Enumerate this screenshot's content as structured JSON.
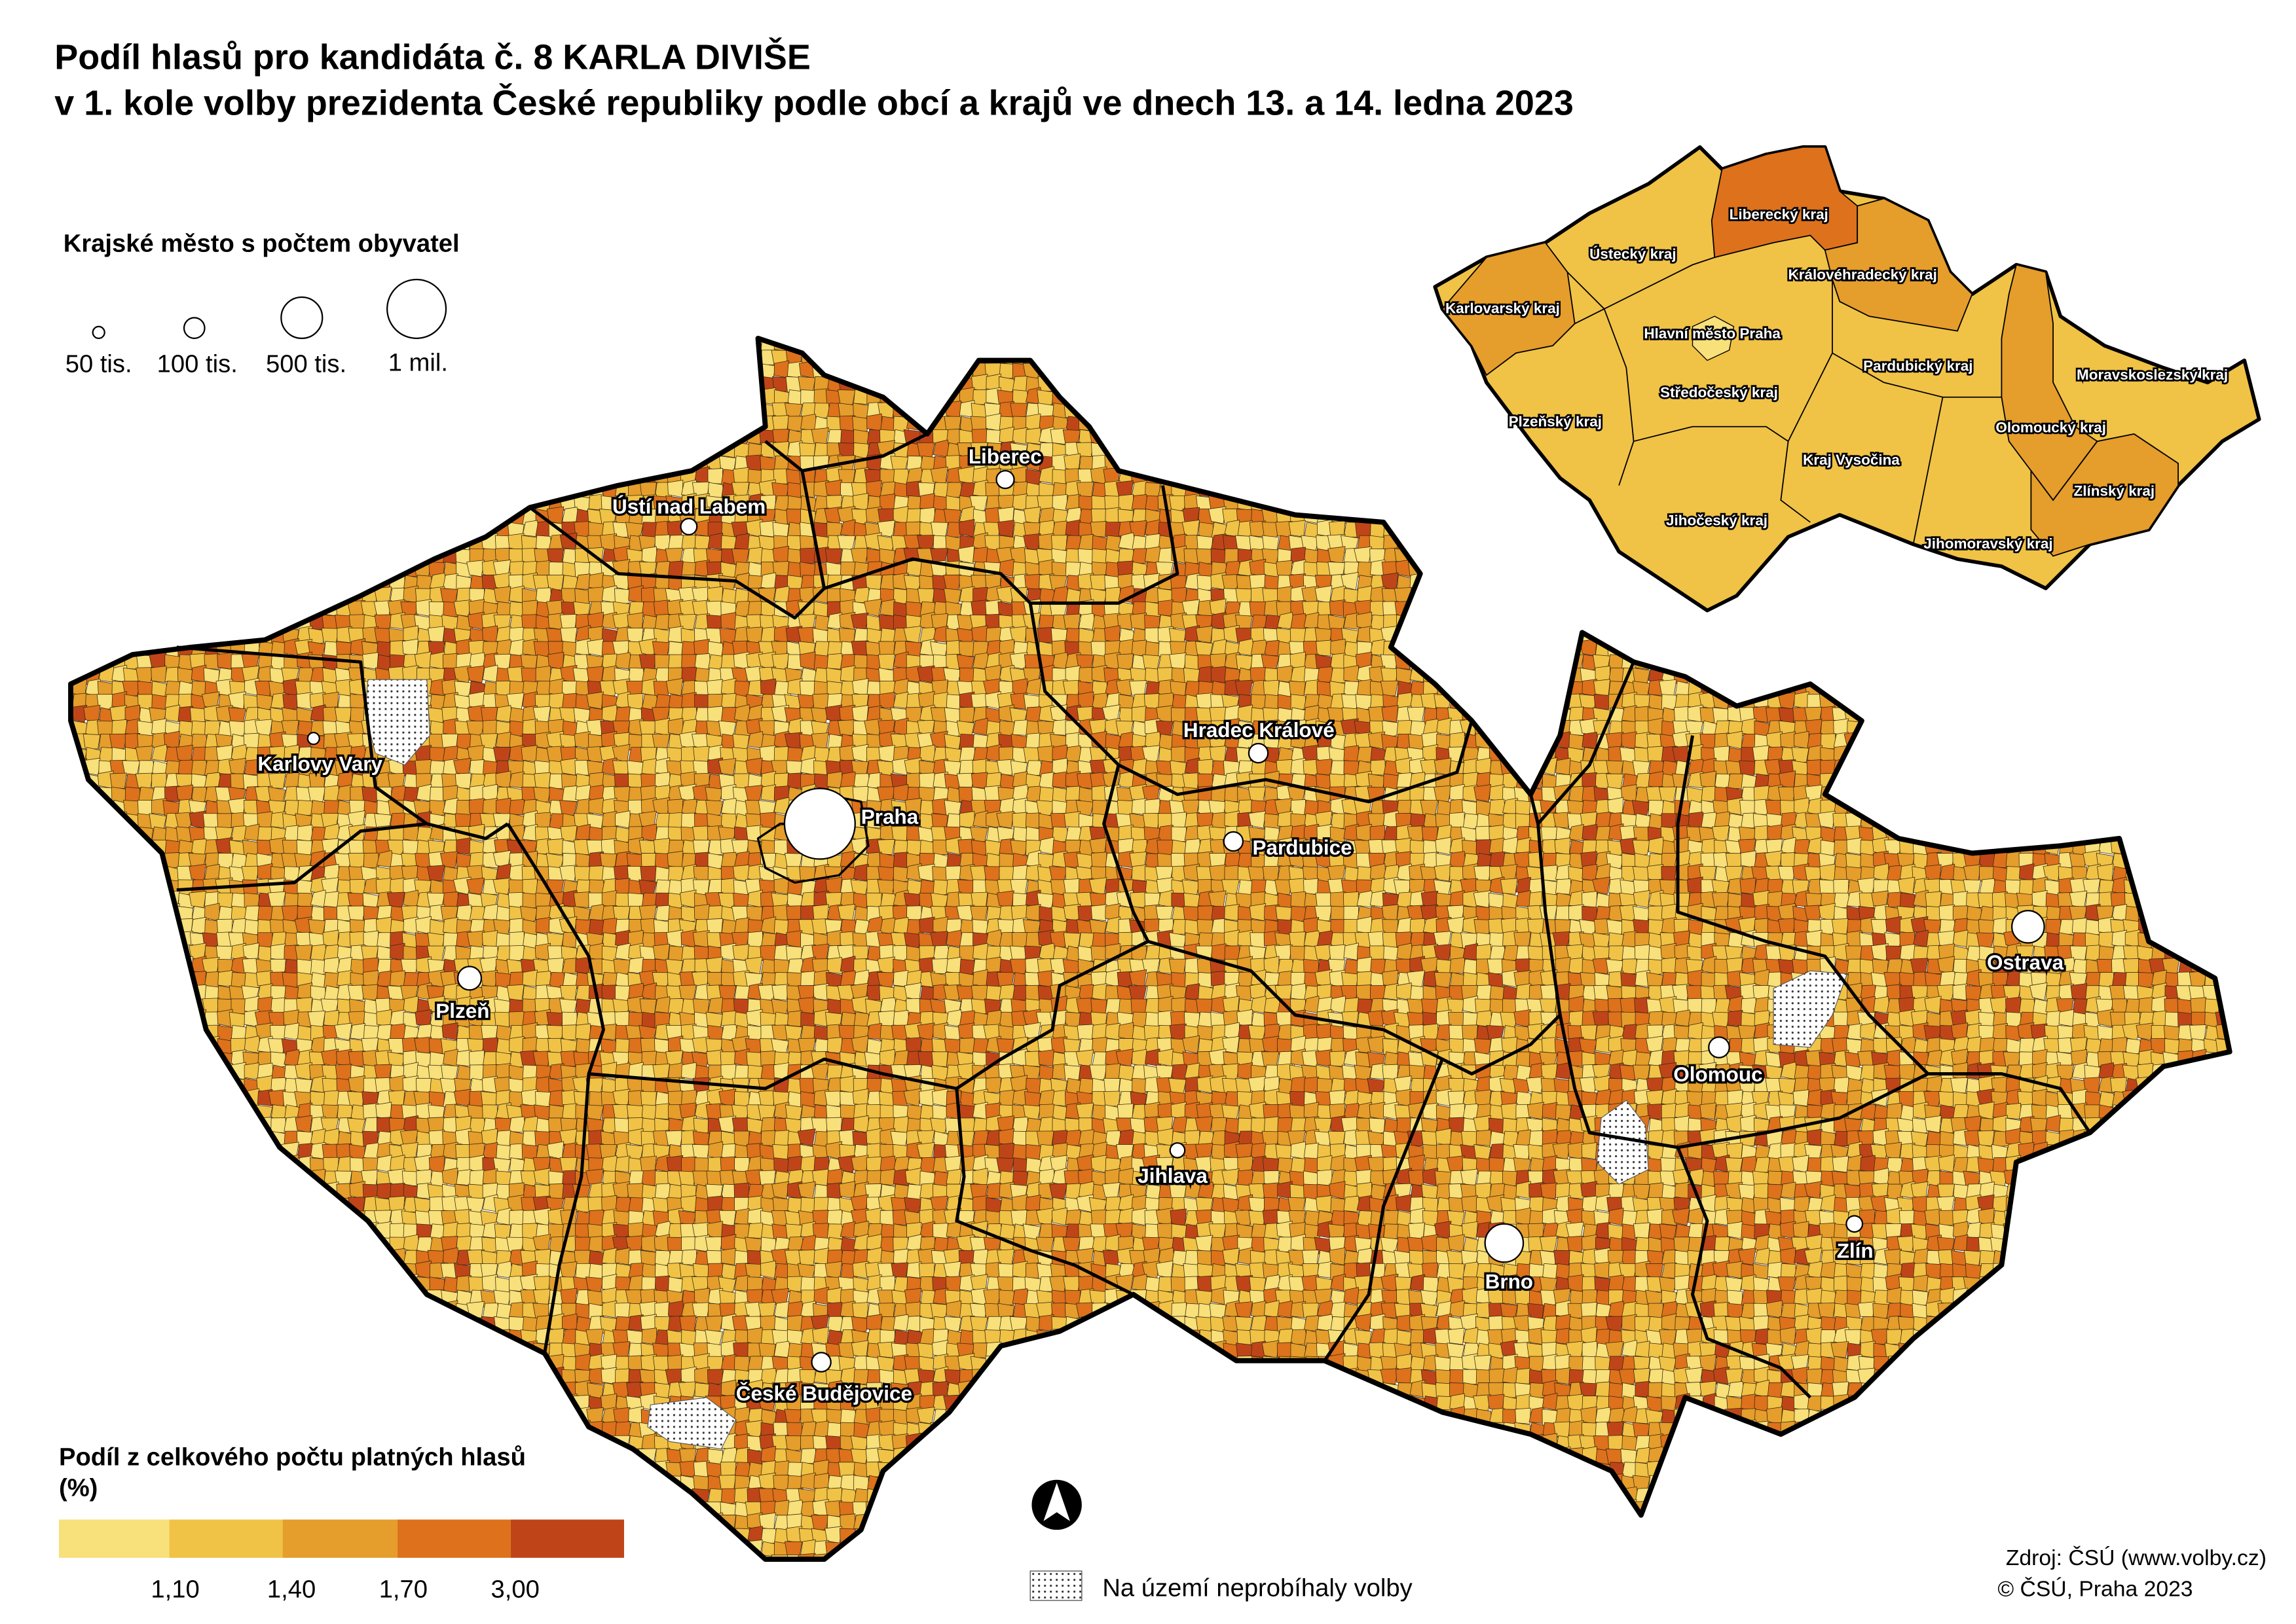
{
  "title": {
    "line1": "Podíl hlasů pro kandidáta č. 8 KARLA DIVIŠE",
    "line2": "v 1. kole volby prezidenta České republiky podle obcí a krajů ve dnech 13. a 14. ledna 2023"
  },
  "size_legend": {
    "title": "Krajské město s počtem obyvatel",
    "items": [
      "50 tis.",
      "100 tis.",
      "500 tis.",
      "1 mil."
    ]
  },
  "color_legend": {
    "title": "Podíl z celkového počtu platných hlasů",
    "unit": "(%)",
    "breaks": [
      "1,10",
      "1,40",
      "1,70",
      "3,00"
    ],
    "colors": [
      "#f8e07a",
      "#f0c246",
      "#e59d2b",
      "#dd711c",
      "#bf4518"
    ]
  },
  "no_vote_legend": {
    "label": "Na území neprobíhaly volby"
  },
  "source": {
    "line1": "Zdroj: ČSÚ (www.volby.cz)",
    "line2": "© ČSÚ, Praha 2023"
  },
  "north_arrow": {
    "icon": "north-arrow-icon"
  },
  "cities": [
    {
      "name": "Praha"
    },
    {
      "name": "Liberec"
    },
    {
      "name": "Ústí nad Labem"
    },
    {
      "name": "Karlovy Vary"
    },
    {
      "name": "Plzeň"
    },
    {
      "name": "Hradec Králové"
    },
    {
      "name": "Pardubice"
    },
    {
      "name": "Ostrava"
    },
    {
      "name": "Olomouc"
    },
    {
      "name": "Jihlava"
    },
    {
      "name": "Brno"
    },
    {
      "name": "Zlín"
    },
    {
      "name": "České Budějovice"
    }
  ],
  "regions": [
    {
      "name": "Liberecký kraj",
      "class": 4
    },
    {
      "name": "Ústecký kraj",
      "class": 2
    },
    {
      "name": "Královéhradecký kraj",
      "class": 3
    },
    {
      "name": "Karlovarský kraj",
      "class": 3
    },
    {
      "name": "Hlavní město Praha",
      "class": 1
    },
    {
      "name": "Pardubický kraj",
      "class": 2
    },
    {
      "name": "Moravskoslezský kraj",
      "class": 2
    },
    {
      "name": "Středočeský kraj",
      "class": 2
    },
    {
      "name": "Plzeňský kraj",
      "class": 2
    },
    {
      "name": "Olomoucký kraj",
      "class": 3
    },
    {
      "name": "Kraj Vysočina",
      "class": 2
    },
    {
      "name": "Zlínský kraj",
      "class": 3
    },
    {
      "name": "Jihočeský kraj",
      "class": 2
    },
    {
      "name": "Jihomoravský kraj",
      "class": 2
    }
  ]
}
